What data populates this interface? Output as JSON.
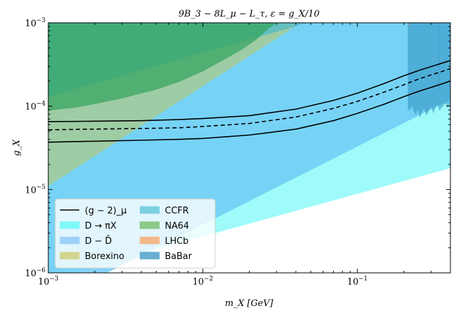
{
  "chart_data": {
    "type": "area",
    "title": "9B_3 − 8L_μ − L_τ, ε = g_X/10",
    "xlabel": "m_X [GeV]",
    "ylabel": "g_X",
    "xscale": "log",
    "yscale": "log",
    "xlim": [
      0.001,
      0.4
    ],
    "ylim": [
      1e-06,
      0.001
    ],
    "x_ticks": [
      {
        "value": 0.001,
        "label": "10^-3"
      },
      {
        "value": 0.01,
        "label": "10^-2"
      },
      {
        "value": 0.1,
        "label": "10^-1"
      }
    ],
    "y_ticks": [
      {
        "value": 1e-06,
        "label": "10^-6"
      },
      {
        "value": 1e-05,
        "label": "10^-5"
      },
      {
        "value": 0.0001,
        "label": "10^-4"
      },
      {
        "value": 0.001,
        "label": "10^-3"
      }
    ],
    "legend_position": "lower-left",
    "regions": [
      {
        "name": "D → πX",
        "color": "#7ff8f8",
        "opacity": 0.75,
        "points": [
          [
            0.001,
            1e-06
          ],
          [
            0.0014,
            1e-06
          ],
          [
            0.4,
            1.8e-05
          ],
          [
            0.4,
            0.001
          ],
          [
            0.001,
            0.001
          ]
        ]
      },
      {
        "name": "D − D̄",
        "color": "#6ecbf5",
        "opacity": 0.85,
        "points": [
          [
            0.001,
            1e-06
          ],
          [
            0.0024,
            1e-06
          ],
          [
            0.4,
            0.00012
          ],
          [
            0.4,
            0.001
          ],
          [
            0.001,
            0.001
          ]
        ]
      },
      {
        "name": "Borexino",
        "color": "#b3c778",
        "opacity": 0.65,
        "points": [
          [
            0.001,
            1.1e-05
          ],
          [
            0.043,
            0.001
          ],
          [
            0.001,
            0.001
          ]
        ]
      },
      {
        "name": "CCFR",
        "color": "#34b6d3",
        "opacity": 0.55,
        "points": [
          [
            0.001,
            0.00013
          ],
          [
            0.048,
            0.001
          ],
          [
            0.001,
            0.001
          ]
        ]
      },
      {
        "name": "NA64",
        "color": "#35a560",
        "opacity": 0.75,
        "points": [
          [
            0.001,
            8.8e-05
          ],
          [
            0.0015,
            9.6e-05
          ],
          [
            0.002,
            0.000106
          ],
          [
            0.003,
            0.000124
          ],
          [
            0.005,
            0.000158
          ],
          [
            0.007,
            0.000195
          ],
          [
            0.01,
            0.000262
          ],
          [
            0.014,
            0.000368
          ],
          [
            0.018,
            0.00048
          ],
          [
            0.022,
            0.00062
          ],
          [
            0.026,
            0.00082
          ],
          [
            0.03,
            0.001
          ],
          [
            0.001,
            0.001
          ]
        ]
      },
      {
        "name": "LHCb",
        "color": "#f0a870",
        "opacity": 0.8,
        "points": [
          [
            0.212,
            0.00093
          ],
          [
            0.218,
            0.00093
          ],
          [
            0.218,
            0.001
          ],
          [
            0.212,
            0.001
          ]
        ]
      },
      {
        "name": "BaBar",
        "color": "#2d8fc0",
        "opacity": 0.55,
        "points": [
          [
            0.212,
            0.001
          ],
          [
            0.212,
            9.5e-05
          ],
          [
            0.218,
            8.8e-05
          ],
          [
            0.225,
            0.000101
          ],
          [
            0.232,
            8.6e-05
          ],
          [
            0.24,
            7.8e-05
          ],
          [
            0.246,
            9.2e-05
          ],
          [
            0.254,
            7.2e-05
          ],
          [
            0.262,
            8.4e-05
          ],
          [
            0.27,
            9.4e-05
          ],
          [
            0.28,
            7.6e-05
          ],
          [
            0.29,
            8.9e-05
          ],
          [
            0.3,
            9.8e-05
          ],
          [
            0.31,
            8.2e-05
          ],
          [
            0.32,
            9.5e-05
          ],
          [
            0.33,
            0.000104
          ],
          [
            0.34,
            8.8e-05
          ],
          [
            0.355,
            9.9e-05
          ],
          [
            0.37,
            0.000108
          ],
          [
            0.385,
            9.6e-05
          ],
          [
            0.4,
            0.000105
          ],
          [
            0.4,
            0.001
          ]
        ]
      },
      {
        "name": "BaBar-stripe",
        "color": "#2d8fc0",
        "opacity": 0.35,
        "points": [
          [
            0.335,
            0.00016
          ],
          [
            0.34,
            0.00016
          ],
          [
            0.34,
            0.001
          ],
          [
            0.335,
            0.001
          ]
        ]
      }
    ],
    "lines": [
      {
        "name": "(g − 2)_μ",
        "style": "solid",
        "x": [
          0.001,
          0.002,
          0.004,
          0.007,
          0.01,
          0.02,
          0.04,
          0.07,
          0.1,
          0.15,
          0.2,
          0.25,
          0.3,
          0.35,
          0.4
        ],
        "y": [
          6.5e-05,
          6.6e-05,
          6.7e-05,
          6.9e-05,
          7.1e-05,
          7.7e-05,
          9.2e-05,
          0.000117,
          0.000143,
          0.000188,
          0.000232,
          0.000268,
          0.000298,
          0.000326,
          0.000352
        ]
      },
      {
        "name": "",
        "style": "dashed",
        "x": [
          0.001,
          0.002,
          0.004,
          0.007,
          0.01,
          0.02,
          0.04,
          0.07,
          0.1,
          0.15,
          0.2,
          0.25,
          0.3,
          0.35,
          0.4
        ],
        "y": [
          5.2e-05,
          5.3e-05,
          5.4e-05,
          5.5e-05,
          5.7e-05,
          6.2e-05,
          7.4e-05,
          9.4e-05,
          0.000114,
          0.000148,
          0.000181,
          0.000212,
          0.000237,
          0.000259,
          0.000283
        ]
      },
      {
        "name": "",
        "style": "solid",
        "x": [
          0.001,
          0.002,
          0.004,
          0.007,
          0.01,
          0.02,
          0.04,
          0.07,
          0.1,
          0.15,
          0.2,
          0.25,
          0.3,
          0.35,
          0.4
        ],
        "y": [
          3.7e-05,
          3.8e-05,
          3.9e-05,
          4e-05,
          4.1e-05,
          4.5e-05,
          5.3e-05,
          6.7e-05,
          8.2e-05,
          0.000106,
          0.00013,
          0.000151,
          0.000168,
          0.000184,
          0.0002
        ]
      }
    ],
    "legend": [
      {
        "label": "(g − 2)_μ",
        "kind": "line",
        "color": "#000000"
      },
      {
        "label": "D → πX",
        "kind": "patch",
        "color": "#7ff8f8"
      },
      {
        "label": "D − D̄",
        "kind": "patch",
        "color": "#9fd2f8"
      },
      {
        "label": "Borexino",
        "kind": "patch",
        "color": "#d2d690"
      },
      {
        "label": "CCFR",
        "kind": "patch",
        "color": "#7cd0e0"
      },
      {
        "label": "NA64",
        "kind": "patch",
        "color": "#8cc98a"
      },
      {
        "label": "LHCb",
        "kind": "patch",
        "color": "#f4b98a"
      },
      {
        "label": "BaBar",
        "kind": "patch",
        "color": "#6aaed4"
      }
    ]
  }
}
